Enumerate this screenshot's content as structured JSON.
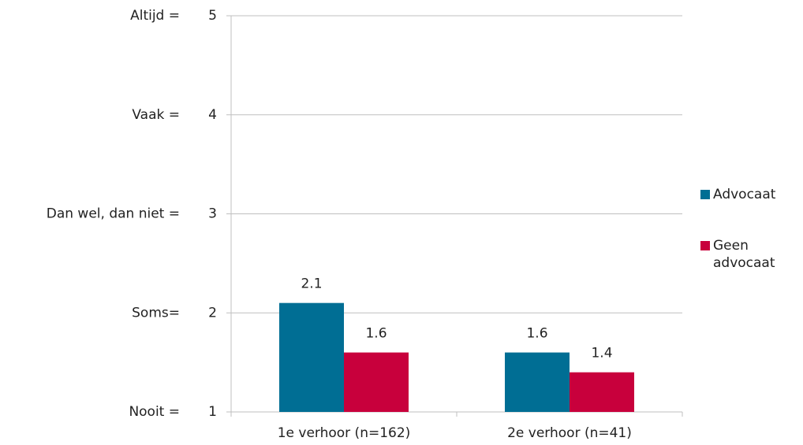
{
  "chart_data": {
    "type": "bar",
    "categories": [
      "1e verhoor (n=162)",
      "2e verhoor (n=41)"
    ],
    "series": [
      {
        "name": "Advocaat",
        "color": "#006e94",
        "values": [
          2.1,
          1.6
        ]
      },
      {
        "name": "Geen advocaat",
        "color": "#c8003c",
        "values": [
          1.6,
          1.4
        ]
      }
    ],
    "ylim": [
      1,
      5
    ],
    "yticks": [
      1,
      2,
      3,
      4,
      5
    ],
    "ytick_descriptions": [
      "Nooit =",
      "Soms=",
      "Dan wel, dan niet =",
      "Vaak =",
      "Altijd ="
    ],
    "grid": true,
    "legend": "right"
  }
}
